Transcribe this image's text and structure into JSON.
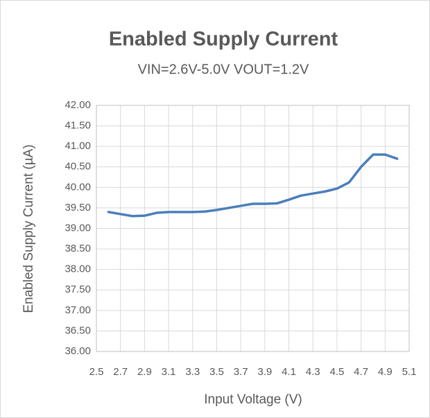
{
  "chart_data": {
    "type": "line",
    "title": "Enabled Supply Current",
    "subtitle": "VIN=2.6V-5.0V VOUT=1.2V",
    "x_label": "Input Voltage (V)",
    "y_label": "Enabled Supply Current (µA)",
    "x": [
      2.6,
      2.7,
      2.8,
      2.9,
      3.0,
      3.1,
      3.2,
      3.3,
      3.4,
      3.5,
      3.6,
      3.7,
      3.8,
      3.9,
      4.0,
      4.1,
      4.2,
      4.3,
      4.4,
      4.5,
      4.6,
      4.7,
      4.8,
      4.9,
      5.0
    ],
    "series": [
      {
        "name": "Enabled Supply Current",
        "color": "#4a7ebb",
        "values": [
          39.4,
          39.35,
          39.3,
          39.31,
          39.38,
          39.4,
          39.4,
          39.4,
          39.41,
          39.45,
          39.5,
          39.55,
          39.6,
          39.6,
          39.61,
          39.7,
          39.8,
          39.85,
          39.9,
          39.97,
          40.12,
          40.5,
          40.8,
          40.8,
          40.7
        ]
      }
    ],
    "xlim": [
      2.5,
      5.1
    ],
    "xticks": [
      2.5,
      2.7,
      2.9,
      3.1,
      3.3,
      3.5,
      3.7,
      3.9,
      4.1,
      4.3,
      4.5,
      4.7,
      4.9,
      5.1
    ],
    "ylim": [
      36,
      42
    ],
    "yticks": [
      {
        "value": 36,
        "label": "36.00"
      },
      {
        "value": 36.5,
        "label": "36.50"
      },
      {
        "value": 37,
        "label": "37.00"
      },
      {
        "value": 37.5,
        "label": "37.50"
      },
      {
        "value": 38,
        "label": "38.00"
      },
      {
        "value": 38.5,
        "label": "38.50"
      },
      {
        "value": 39,
        "label": "39.00"
      },
      {
        "value": 39.5,
        "label": "39.50"
      },
      {
        "value": 40,
        "label": "40.00"
      },
      {
        "value": 40.5,
        "label": "40.50"
      },
      {
        "value": 41,
        "label": "41.00"
      },
      {
        "value": 41.5,
        "label": "41.50"
      },
      {
        "value": 42,
        "label": "42.00"
      }
    ],
    "grid": true
  }
}
